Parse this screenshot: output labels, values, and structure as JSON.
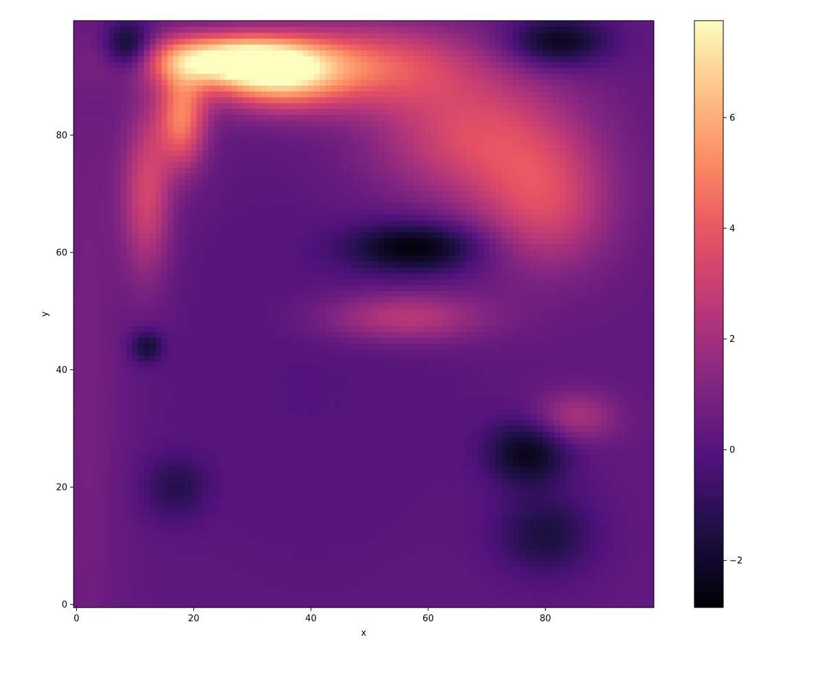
{
  "chart_data": {
    "type": "heatmap",
    "title": "",
    "xlabel": "x",
    "ylabel": "y",
    "xlim": [
      -0.5,
      98.5
    ],
    "ylim": [
      -0.5,
      99.5
    ],
    "x_ticks": [
      0,
      20,
      40,
      60,
      80
    ],
    "y_ticks": [
      0,
      20,
      40,
      60,
      80
    ],
    "colormap": "magma",
    "colorbar": {
      "range": [
        -2.85,
        7.75
      ],
      "ticks": [
        -2,
        0,
        2,
        4,
        6
      ]
    },
    "grid_size": {
      "cols": 99,
      "rows": 100
    },
    "features_description_free": true,
    "gaussian_features": [
      {
        "x": 2,
        "y": 40,
        "sx": 4,
        "sy": 40,
        "value": 0.6
      },
      {
        "x": 25,
        "y": 93,
        "sx": 10,
        "sy": 3,
        "value": 6.5
      },
      {
        "x": 34,
        "y": 90,
        "sx": 8,
        "sy": 4,
        "value": 5.0
      },
      {
        "x": 18,
        "y": 83,
        "sx": 3,
        "sy": 6,
        "value": 4.5
      },
      {
        "x": 12,
        "y": 70,
        "sx": 3,
        "sy": 10,
        "value": 3.0
      },
      {
        "x": 50,
        "y": 92,
        "sx": 12,
        "sy": 5,
        "value": 3.5
      },
      {
        "x": 68,
        "y": 80,
        "sx": 12,
        "sy": 8,
        "value": 3.2
      },
      {
        "x": 80,
        "y": 68,
        "sx": 8,
        "sy": 8,
        "value": 2.8
      },
      {
        "x": 56,
        "y": 49,
        "sx": 10,
        "sy": 3,
        "value": 2.5
      },
      {
        "x": 85,
        "y": 32,
        "sx": 5,
        "sy": 3,
        "value": 2.0
      },
      {
        "x": 9,
        "y": 95,
        "sx": 3,
        "sy": 3,
        "value": -3.2
      },
      {
        "x": 58,
        "y": 61,
        "sx": 8,
        "sy": 3,
        "value": -3.0
      },
      {
        "x": 82,
        "y": 96,
        "sx": 6,
        "sy": 3,
        "value": -2.8
      },
      {
        "x": 77,
        "y": 26,
        "sx": 5,
        "sy": 4,
        "value": -2.6
      },
      {
        "x": 80,
        "y": 12,
        "sx": 6,
        "sy": 5,
        "value": -1.8
      },
      {
        "x": 17,
        "y": 20,
        "sx": 4,
        "sy": 4,
        "value": -1.4
      },
      {
        "x": 12,
        "y": 44,
        "sx": 2,
        "sy": 2,
        "value": -2.0
      },
      {
        "x": 40,
        "y": 40,
        "sx": 20,
        "sy": 25,
        "value": -0.4
      }
    ]
  }
}
